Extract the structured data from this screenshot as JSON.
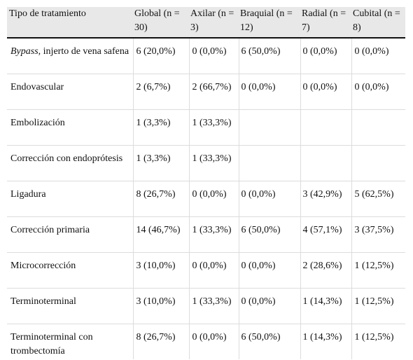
{
  "table": {
    "headers": [
      "Tipo de tratamiento",
      "Global (n = 30)",
      "Axilar (n = 3)",
      "Braquial (n = 12)",
      "Radial (n = 7)",
      "Cubital (n = 8)"
    ],
    "rows": [
      {
        "label_italic": "Bypass,",
        "label": " injerto de vena safena",
        "cells": [
          "6 (20,0%)",
          "0 (0,0%)",
          "6 (50,0%)",
          "0 (0,0%)",
          "0 (0,0%)"
        ]
      },
      {
        "label_italic": "",
        "label": "Endovascular",
        "cells": [
          "2 (6,7%)",
          "2 (66,7%)",
          "0 (0,0%)",
          "0 (0,0%)",
          "0 (0,0%)"
        ]
      },
      {
        "label_italic": "",
        "label": "Embolización",
        "cells": [
          "1 (3,3%)",
          "1 (33,3%)",
          "",
          "",
          ""
        ]
      },
      {
        "label_italic": "",
        "label": "Corrección con endoprótesis",
        "cells": [
          "1 (3,3%)",
          "1 (33,3%)",
          "",
          "",
          ""
        ]
      },
      {
        "label_italic": "",
        "label": "Ligadura",
        "cells": [
          "8 (26,7%)",
          "0 (0,0%)",
          "0 (0,0%)",
          "3 (42,9%)",
          "5 (62,5%)"
        ]
      },
      {
        "label_italic": "",
        "label": "Corrección primaria",
        "cells": [
          "14 (46,7%)",
          "1 (33,3%)",
          "6 (50,0%)",
          "4 (57,1%)",
          "3 (37,5%)"
        ]
      },
      {
        "label_italic": "",
        "label": "Microcorrección",
        "cells": [
          "3 (10,0%)",
          "0 (0,0%)",
          "0 (0,0%)",
          "2 (28,6%)",
          "1 (12,5%)"
        ]
      },
      {
        "label_italic": "",
        "label": "Terminoterminal",
        "cells": [
          "3 (10,0%)",
          "1 (33,3%)",
          "0 (0,0%)",
          "1 (14,3%)",
          "1 (12,5%)"
        ]
      },
      {
        "label_italic": "",
        "label": "Terminoterminal con trombectomía",
        "cells": [
          "8 (26,7%)",
          "0 (0,0%)",
          "6 (50,0%)",
          "1 (14,3%)",
          "1 (12,5%)"
        ]
      }
    ]
  }
}
